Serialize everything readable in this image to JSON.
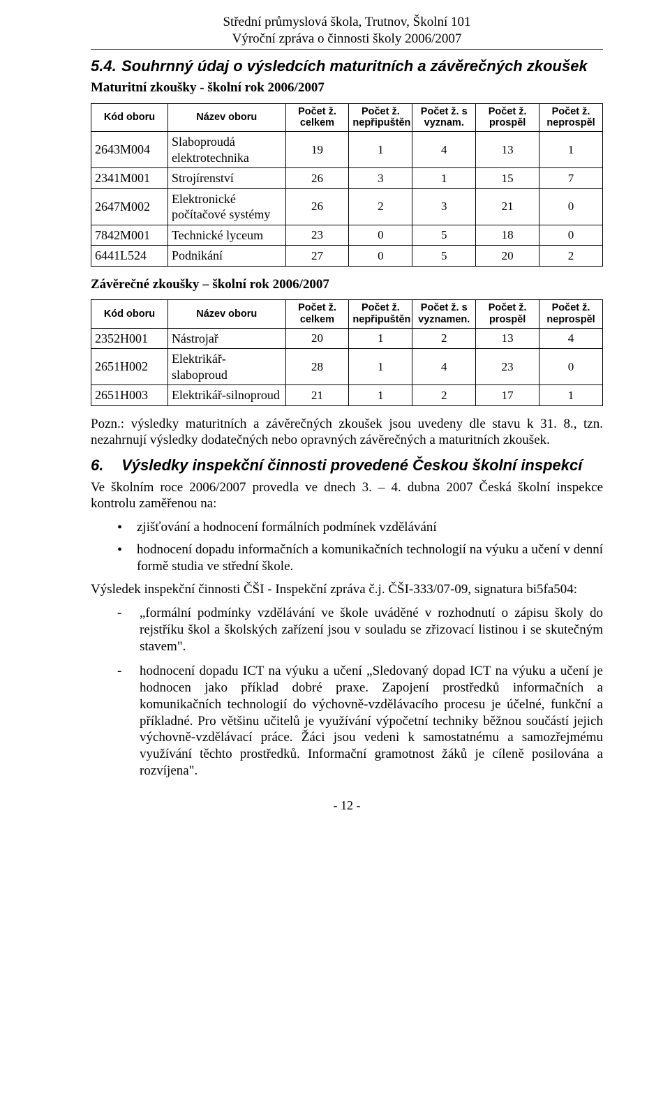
{
  "header": {
    "line1": "Střední průmyslová škola, Trutnov, Školní 101",
    "line2": "Výroční zpráva o činnosti školy 2006/2007"
  },
  "section54": {
    "number": "5.4.",
    "title": "Souhrnný údaj o výsledcích maturitních a závěrečných zkoušek",
    "subtitle1": "Maturitní zkoušky - školní rok 2006/2007"
  },
  "tableA": {
    "columns": [
      "Kód oboru",
      "Název oboru",
      "Počet ž. celkem",
      "Počet ž. nepřipuštěn",
      "Počet ž. s vyznam.",
      "Počet ž. prospěl",
      "Počet ž. neprospěl"
    ],
    "rows": [
      [
        "2643M004",
        "Slaboproudá elektrotechnika",
        "19",
        "1",
        "4",
        "13",
        "1"
      ],
      [
        "2341M001",
        "Strojírenství",
        "26",
        "3",
        "1",
        "15",
        "7"
      ],
      [
        "2647M002",
        "Elektronické počítačové systémy",
        "26",
        "2",
        "3",
        "21",
        "0"
      ],
      [
        "7842M001",
        "Technické lyceum",
        "23",
        "0",
        "5",
        "18",
        "0"
      ],
      [
        "6441L524",
        "Podnikání",
        "27",
        "0",
        "5",
        "20",
        "2"
      ]
    ]
  },
  "subtitle2": "Závěrečné zkoušky – školní rok 2006/2007",
  "tableB": {
    "columns": [
      "Kód oboru",
      "Název oboru",
      "Počet ž. celkem",
      "Počet ž. nepřipuštěn",
      "Počet ž. s vyznamen.",
      "Počet ž. prospěl",
      "Počet ž. neprospěl"
    ],
    "rows": [
      [
        "2352H001",
        "Nástrojař",
        "20",
        "1",
        "2",
        "13",
        "4"
      ],
      [
        "2651H002",
        "Elektrikář-slaboproud",
        "28",
        "1",
        "4",
        "23",
        "0"
      ],
      [
        "2651H003",
        "Elektrikář-silnoproud",
        "21",
        "1",
        "2",
        "17",
        "1"
      ]
    ]
  },
  "note": "Pozn.: výsledky maturitních a závěrečných zkoušek jsou uvedeny dle stavu k 31. 8., tzn. nezahrnují výsledky dodatečných nebo opravných závěrečných a maturitních zkoušek.",
  "section6": {
    "number": "6.",
    "title": "Výsledky inspekční činnosti provedené Českou školní inspekcí",
    "intro": "Ve školním roce 2006/2007 provedla ve dnech  3. – 4. dubna 2007 Česká školní inspekce kontrolu zaměřenou na:",
    "bullets": [
      "zjišťování a hodnocení formálních podmínek vzdělávání",
      "hodnocení dopadu informačních a komunikačních technologií na výuku a učení v denní formě studia ve střední škole."
    ],
    "resultLine": "Výsledek inspekční činnosti ČŠI - Inspekční zpráva č.j. ČŠI-333/07-09, signatura bi5fa504:",
    "dashes": [
      "„formální podmínky vzdělávání ve škole uváděné v rozhodnutí o zápisu školy do rejstříku škol a školských zařízení jsou v souladu se zřizovací listinou i se skutečným stavem\".",
      "hodnocení dopadu ICT na výuku a učení „Sledovaný dopad ICT na výuku a učení je hodnocen jako příklad dobré praxe. Zapojení prostředků informačních a komunikačních technologií do výchovně-vzdělávacího procesu je účelné, funkční a příkladné. Pro většinu učitelů je využívání výpočetní techniky běžnou součástí jejich výchovně-vzdělávací práce. Žáci jsou vedeni k samostatnému a samozřejmému využívání těchto prostředků. Informační gramotnost žáků je cíleně posilována a rozvíjena\"."
    ]
  },
  "pageNumber": "- 12 -",
  "colors": {
    "text": "#000000",
    "background": "#ffffff",
    "border": "#000000"
  },
  "fonts": {
    "body": "Times New Roman",
    "headings": "Arial",
    "tableHeader": "Arial"
  }
}
